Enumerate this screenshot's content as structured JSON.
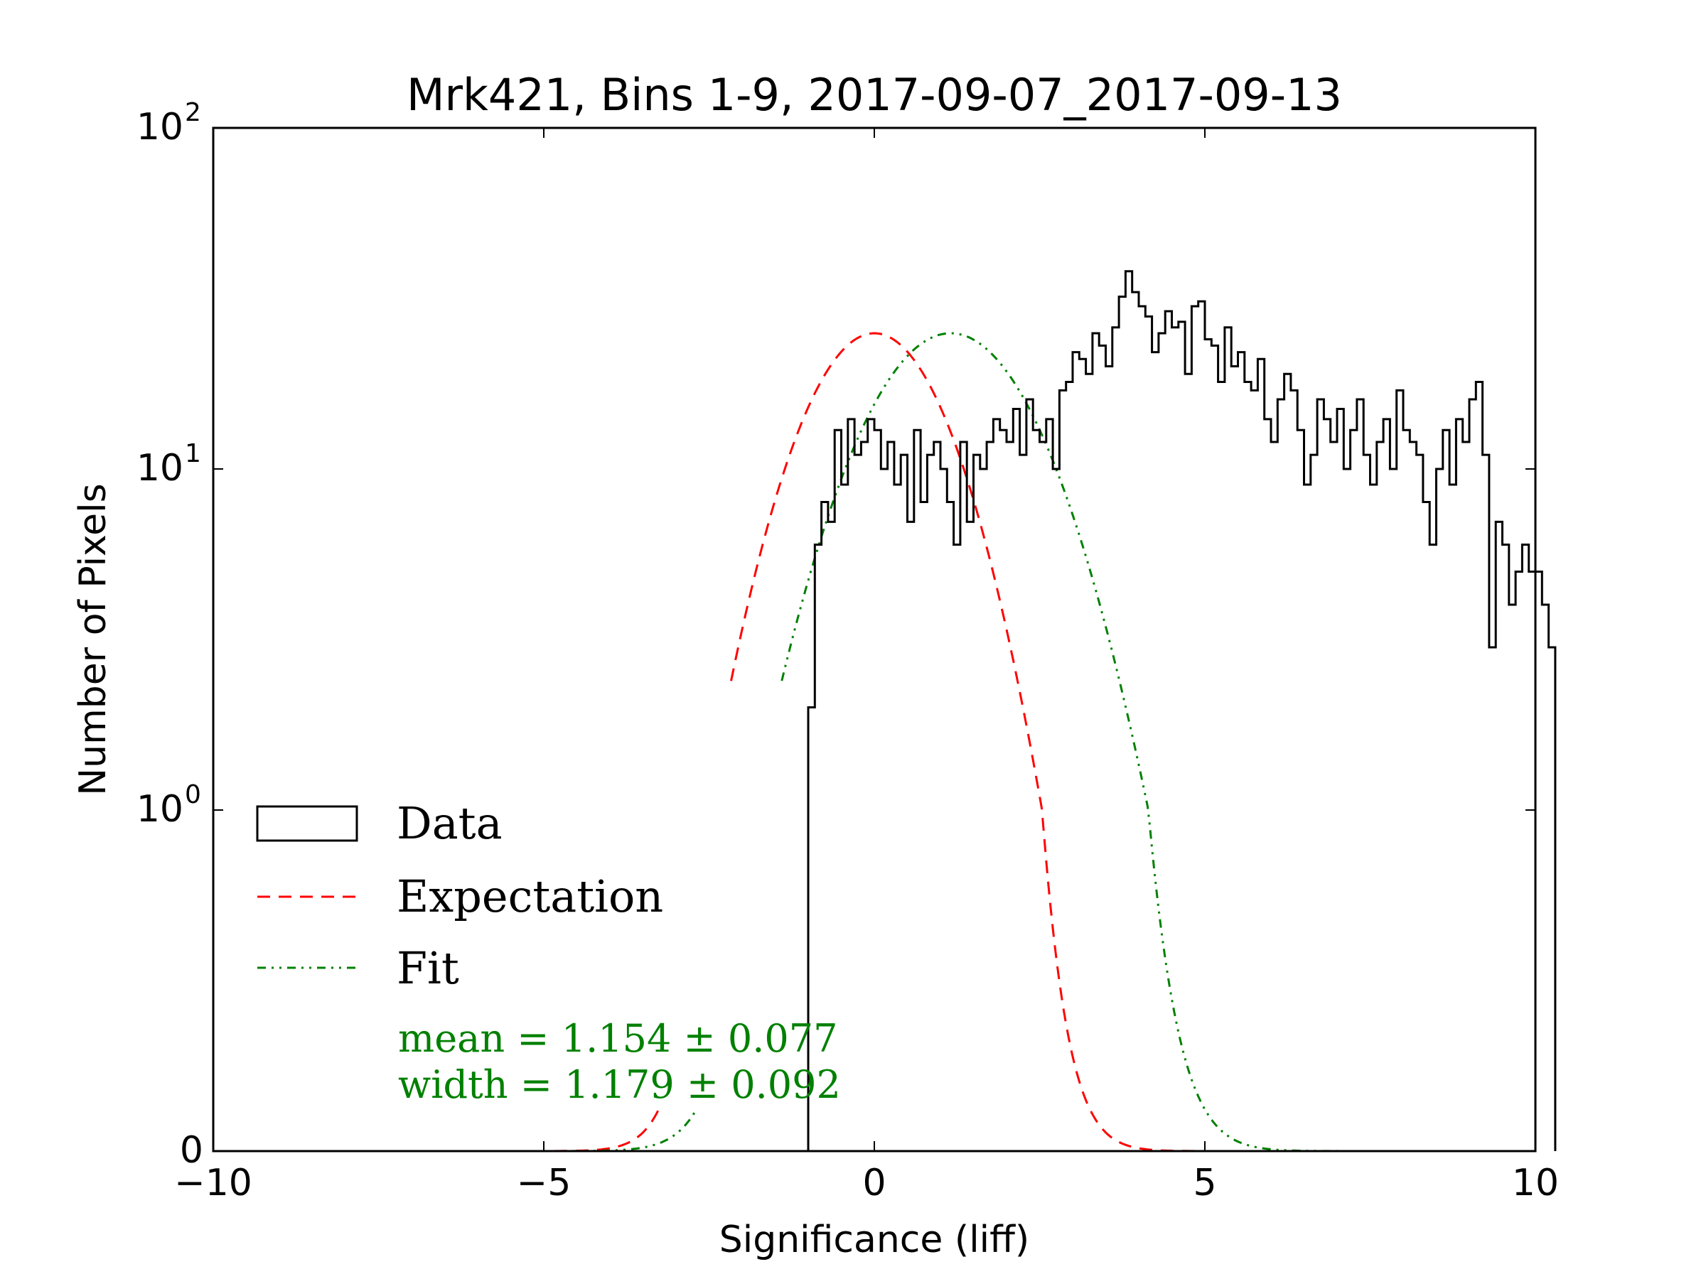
{
  "chart_data": {
    "type": "histogram",
    "title": "Mrk421, Bins 1-9, 2017-09-07_2017-09-13",
    "xlabel": "Significance (liff)",
    "ylabel": "Number of Pixels",
    "xlim": [
      -10,
      10
    ],
    "yscale": "symlog",
    "ylim_top": 100,
    "x_ticks": [
      {
        "value": -10,
        "label": "−10"
      },
      {
        "value": -5,
        "label": "−5"
      },
      {
        "value": 0,
        "label": "0"
      },
      {
        "value": 5,
        "label": "5"
      },
      {
        "value": 10,
        "label": "10"
      }
    ],
    "y_ticks": [
      {
        "value": 0,
        "base": "0",
        "exp": ""
      },
      {
        "value": 1,
        "base": "10",
        "exp": "0"
      },
      {
        "value": 10,
        "base": "10",
        "exp": "1"
      },
      {
        "value": 100,
        "base": "10",
        "exp": "2"
      }
    ],
    "series": [
      {
        "name": "Data",
        "kind": "step-histogram",
        "color": "#000000",
        "bin_width": 0.1,
        "x_start": -1.0,
        "counts": [
          2,
          6,
          8,
          7,
          13,
          9,
          14,
          11,
          12,
          14,
          13,
          10,
          12,
          9,
          11,
          7,
          13,
          8,
          11,
          12,
          10,
          8,
          6,
          12,
          7,
          11,
          10,
          12,
          14,
          13,
          12,
          15,
          11,
          16,
          13,
          12,
          14,
          10,
          17,
          18,
          22,
          21,
          19,
          25,
          23,
          20,
          26,
          32,
          38,
          33,
          30,
          28,
          22,
          25,
          29,
          26,
          27,
          19,
          30,
          31,
          24,
          23,
          18,
          26,
          20,
          22,
          18,
          17,
          21,
          14,
          12,
          16,
          19,
          17,
          13,
          9,
          11,
          16,
          14,
          12,
          15,
          10,
          13,
          16,
          11,
          9,
          12,
          14,
          10,
          17,
          13,
          12,
          11,
          8,
          6,
          10,
          13,
          9,
          14,
          12,
          16,
          18,
          11,
          3,
          7,
          6,
          4,
          5,
          6,
          5,
          5,
          4,
          3
        ]
      },
      {
        "name": "Expectation",
        "kind": "gaussian",
        "color": "#ff0000",
        "amplitude": 25,
        "mean": 0,
        "width": 1,
        "x_range": [
          -10,
          10
        ],
        "drawn_above": 2.3
      },
      {
        "name": "Fit",
        "kind": "gaussian",
        "color": "#008000",
        "amplitude": 25,
        "mean": 1.154,
        "width": 1.179,
        "x_range": [
          -10,
          10
        ],
        "drawn_above": 2.3
      }
    ],
    "legend": {
      "location": "lower-left",
      "entries": [
        "Data",
        "Expectation",
        "Fit"
      ]
    },
    "annotation": {
      "line1": "mean = 1.154 ± 0.077",
      "line2": "width = 1.179 ± 0.092",
      "color": "#008000"
    }
  }
}
